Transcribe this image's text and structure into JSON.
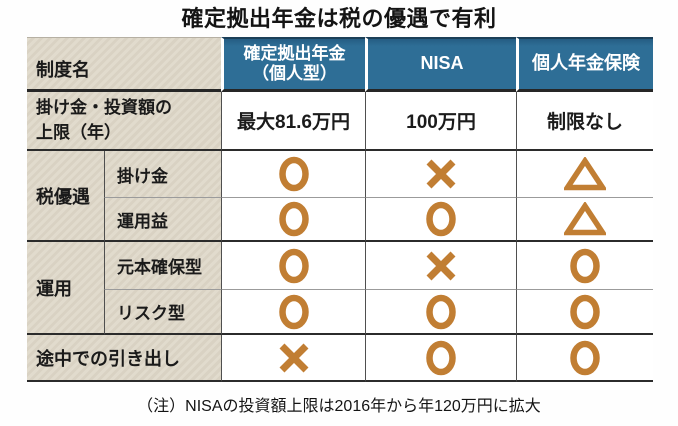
{
  "title": "確定拠出年金は税の優遇で有利",
  "colors": {
    "header_bg": "#2e6e96",
    "header_text": "#ffffff",
    "label_bg": "#ddd6c8",
    "symbol": "#c17e33",
    "rule_thick": "#2b2b2b",
    "rule_thin": "#9b9b9b"
  },
  "table": {
    "corner_label": "制度名",
    "columns": [
      {
        "line1": "確定拠出年金",
        "line2": "（個人型）"
      },
      {
        "line1": "NISA"
      },
      {
        "line1": "個人年金保険"
      }
    ],
    "limit_row": {
      "label_line1": "掛け金・投資額の",
      "label_line2": "上限（年）",
      "values": [
        "最大81.6万円",
        "100万円",
        "制限なし"
      ]
    },
    "groups": [
      {
        "label": "税優遇",
        "rows": [
          {
            "label": "掛け金",
            "values": [
              "○",
              "×",
              "△"
            ]
          },
          {
            "label": "運用益",
            "values": [
              "○",
              "○",
              "△"
            ]
          }
        ]
      },
      {
        "label": "運用",
        "rows": [
          {
            "label": "元本確保型",
            "values": [
              "○",
              "×",
              "○"
            ]
          },
          {
            "label": "リスク型",
            "values": [
              "○",
              "○",
              "○"
            ]
          }
        ]
      }
    ],
    "withdraw_row": {
      "label": "途中での引き出し",
      "values": [
        "×",
        "○",
        "○"
      ]
    },
    "legend_meaning": {
      "○": "yes",
      "×": "no",
      "△": "partial"
    }
  },
  "footnote": "（注）NISAの投資額上限は2016年から年120万円に拡大"
}
